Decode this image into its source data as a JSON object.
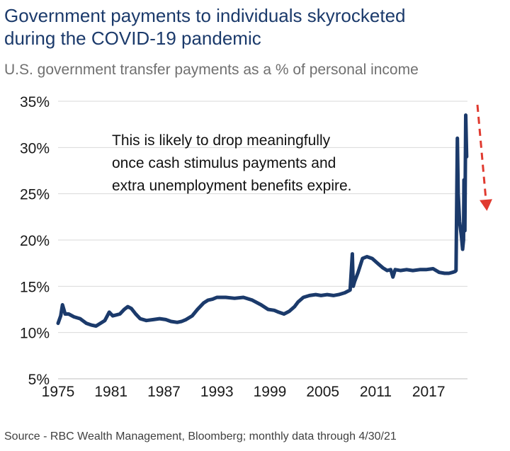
{
  "header": {
    "title_line1": "Government payments to individuals skyrocketed",
    "title_line2": "during the COVID-19 pandemic",
    "subtitle": "U.S. government transfer payments as a % of personal income"
  },
  "footer": {
    "source": "Source - RBC Wealth Management, Bloomberg; monthly data through 4/30/21"
  },
  "colors": {
    "line": "#1b3a6b",
    "arrow": "#e03a2f",
    "grid": "#d9d9d9"
  },
  "chart_data": {
    "type": "line",
    "title": "",
    "xlabel": "",
    "ylabel": "",
    "xlim": [
      1975,
      2021.4
    ],
    "ylim": [
      5,
      35
    ],
    "x_ticks": [
      1975,
      1981,
      1987,
      1993,
      1999,
      2005,
      2011,
      2017
    ],
    "x_tick_labels": [
      "1975",
      "1981",
      "1987",
      "1993",
      "1999",
      "2005",
      "2011",
      "2017"
    ],
    "y_ticks": [
      5,
      10,
      15,
      20,
      25,
      30,
      35
    ],
    "y_tick_labels": [
      "5%",
      "10%",
      "15%",
      "20%",
      "25%",
      "30%",
      "35%"
    ],
    "grid": "horizontal",
    "annotation": {
      "lines": [
        "This is likely to drop meaningfully",
        "once cash stimulus payments and",
        "extra unemployment benefits expire."
      ],
      "arrow": "dashed red arrow pointing down at latest value"
    },
    "series": [
      {
        "x": [
          1975.0,
          1975.3,
          1975.5,
          1975.8,
          1976.2,
          1976.8,
          1977.5,
          1978.2,
          1978.8,
          1979.3,
          1979.8,
          1980.3,
          1980.8,
          1981.2,
          1981.6,
          1982.0,
          1982.5,
          1982.9,
          1983.3,
          1983.8,
          1984.3,
          1985.0,
          1985.8,
          1986.5,
          1987.2,
          1987.8,
          1988.5,
          1989.0,
          1989.5,
          1990.2,
          1990.8,
          1991.5,
          1992.0,
          1992.5,
          1993.0,
          1994.0,
          1995.0,
          1996.0,
          1997.0,
          1998.0,
          1998.8,
          1999.5,
          2000.0,
          2000.6,
          2001.2,
          2001.8,
          2002.2,
          2002.8,
          2003.5,
          2004.2,
          2004.8,
          2005.5,
          2006.2,
          2006.8,
          2007.5,
          2008.1,
          2008.35,
          2008.45,
          2008.6,
          2009.0,
          2009.5,
          2010.0,
          2010.6,
          2011.2,
          2011.8,
          2012.3,
          2012.7,
          2012.95,
          2013.2,
          2013.8,
          2014.5,
          2015.2,
          2016.0,
          2016.7,
          2017.5,
          2018.2,
          2018.8,
          2019.3,
          2019.7,
          2020.0,
          2020.1,
          2020.25,
          2020.35,
          2020.5,
          2020.7,
          2020.85,
          2020.95,
          2021.0,
          2021.1,
          2021.2,
          2021.3
        ],
        "values": [
          11.0,
          11.8,
          13.0,
          12.0,
          12.0,
          11.7,
          11.5,
          11.0,
          10.8,
          10.7,
          11.0,
          11.3,
          12.2,
          11.8,
          11.9,
          12.0,
          12.5,
          12.8,
          12.6,
          12.0,
          11.5,
          11.3,
          11.4,
          11.5,
          11.4,
          11.2,
          11.1,
          11.2,
          11.4,
          11.8,
          12.5,
          13.2,
          13.5,
          13.6,
          13.8,
          13.8,
          13.7,
          13.8,
          13.5,
          13.0,
          12.5,
          12.4,
          12.2,
          12.0,
          12.3,
          12.8,
          13.3,
          13.8,
          14.0,
          14.1,
          14.0,
          14.1,
          14.0,
          14.1,
          14.3,
          14.6,
          18.5,
          15.0,
          15.5,
          16.5,
          18.0,
          18.2,
          18.0,
          17.5,
          17.0,
          16.7,
          16.8,
          16.0,
          16.8,
          16.7,
          16.8,
          16.7,
          16.8,
          16.8,
          16.9,
          16.5,
          16.4,
          16.4,
          16.5,
          16.6,
          16.7,
          31.0,
          25.0,
          22.0,
          20.5,
          19.0,
          20.0,
          26.5,
          21.0,
          33.5,
          29.0
        ]
      }
    ]
  }
}
